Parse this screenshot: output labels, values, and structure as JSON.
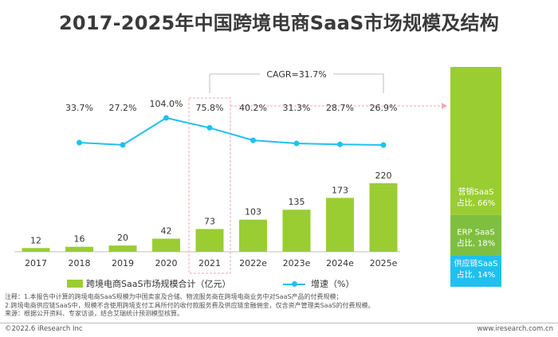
{
  "title": "2017-2025年中国跨境电商SaaS市场规模及结构",
  "chart_data": {
    "type": "bar",
    "categories": [
      "2017",
      "2018",
      "2019",
      "2020",
      "2021",
      "2022e",
      "2023e",
      "2024e",
      "2025e"
    ],
    "series": [
      {
        "name": "跨境电商SaaS市场规模合计（亿元）",
        "type": "bar",
        "values": [
          12,
          16,
          20,
          42,
          73,
          103,
          135,
          173,
          220
        ],
        "color": "#9acd32"
      },
      {
        "name": "增速（%）",
        "type": "line",
        "values": [
          33.7,
          27.2,
          104.0,
          75.8,
          40.2,
          31.3,
          28.7,
          26.9
        ],
        "labels": [
          "33.7%",
          "27.2%",
          "104.0%",
          "75.8%",
          "40.2%",
          "31.3%",
          "28.7%",
          "26.9%"
        ],
        "x": [
          "2018",
          "2019",
          "2020",
          "2021",
          "2022e",
          "2023e",
          "2024e",
          "2025e"
        ],
        "color": "#21c0ef"
      }
    ],
    "annotation": "CAGR=31.7%",
    "highlight_category": "2021",
    "structure": {
      "type": "stacked-bar",
      "segments": [
        {
          "label": "营销SaaS",
          "share_label": "占比, 66%",
          "value": 66,
          "color": "#9acd32"
        },
        {
          "label": "ERP SaaS",
          "share_label": "占比, 18%",
          "value": 18,
          "color": "#7fbf3f"
        },
        {
          "label": "供应链SaaS",
          "share_label": "占比, 14%",
          "value": 14,
          "color": "#21c0ef"
        }
      ]
    }
  },
  "legend": {
    "bar_label": "跨境电商SaaS市场规模合计（亿元）",
    "line_label": "增速（%）"
  },
  "notes": [
    "注释：1.本报告中计算的跨境电商SaaS规模为中国卖家及合储、物流服务商在跨境电商业务中对SaaS产品的付费规模；",
    "2.跨境电商供应链SaaS中，规模不含使用跨境支付工具所付的收付款服务费及供应链金融佣金，仅含资产管理类SaaS的付费规模。",
    "来源：根据公开资料、专家访谈，结合艾瑞统计预测模型核算。"
  ],
  "footer": {
    "left": "©2022.6 iResearch Inc",
    "right": "www.iresearch.com.cn"
  }
}
